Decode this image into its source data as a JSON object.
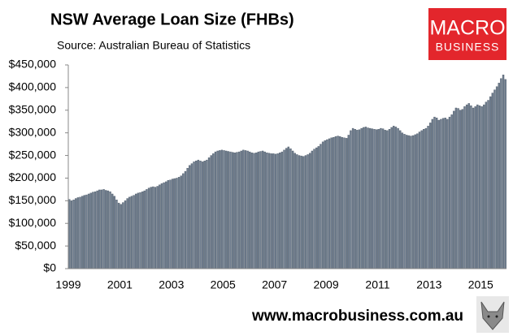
{
  "chart_data": {
    "type": "bar",
    "title": "NSW Average Loan Size (FHBs)",
    "subtitle": "Source: Australian Bureau of Statistics",
    "color": "#6f7d8e",
    "categories": [
      "1999",
      null,
      null,
      null,
      null,
      null,
      null,
      null,
      null,
      null,
      null,
      null,
      null,
      null,
      null,
      null,
      null,
      null,
      null,
      null,
      null,
      null,
      null,
      null,
      "2001",
      null,
      null,
      null,
      null,
      null,
      null,
      null,
      null,
      null,
      null,
      null,
      null,
      null,
      null,
      null,
      null,
      null,
      null,
      null,
      null,
      null,
      null,
      null,
      "2003",
      null,
      null,
      null,
      null,
      null,
      null,
      null,
      null,
      null,
      null,
      null,
      null,
      null,
      null,
      null,
      null,
      null,
      null,
      null,
      null,
      null,
      null,
      null,
      "2005",
      null,
      null,
      null,
      null,
      null,
      null,
      null,
      null,
      null,
      null,
      null,
      null,
      null,
      null,
      null,
      null,
      null,
      null,
      null,
      null,
      null,
      null,
      null,
      "2007",
      null,
      null,
      null,
      null,
      null,
      null,
      null,
      null,
      null,
      null,
      null,
      null,
      null,
      null,
      null,
      null,
      null,
      null,
      null,
      null,
      null,
      null,
      null,
      "2009",
      null,
      null,
      null,
      null,
      null,
      null,
      null,
      null,
      null,
      null,
      null,
      null,
      null,
      null,
      null,
      null,
      null,
      null,
      null,
      null,
      null,
      null,
      null,
      "2011",
      null,
      null,
      null,
      null,
      null,
      null,
      null,
      null,
      null,
      null,
      null,
      null,
      null,
      null,
      null,
      null,
      null,
      null,
      null,
      null,
      null,
      null,
      null,
      "2013",
      null,
      null,
      null,
      null,
      null,
      null,
      null,
      null,
      null,
      null,
      null,
      null,
      null,
      null,
      null,
      null,
      null,
      null,
      null,
      null,
      null,
      null,
      null,
      "2015",
      null,
      null,
      null,
      null,
      null,
      null,
      null,
      null,
      null,
      null,
      null
    ],
    "values": [
      153000,
      150000,
      152000,
      155000,
      157000,
      158000,
      160000,
      162000,
      163000,
      165000,
      167000,
      169000,
      170000,
      172000,
      174000,
      174000,
      175000,
      173000,
      172000,
      170000,
      165000,
      160000,
      152000,
      145000,
      142000,
      146000,
      150000,
      155000,
      158000,
      160000,
      162000,
      165000,
      167000,
      168000,
      170000,
      172000,
      175000,
      178000,
      180000,
      181000,
      180000,
      182000,
      185000,
      188000,
      190000,
      192000,
      195000,
      196000,
      198000,
      199000,
      200000,
      202000,
      205000,
      210000,
      215000,
      222000,
      228000,
      232000,
      236000,
      238000,
      240000,
      238000,
      236000,
      238000,
      240000,
      245000,
      250000,
      254000,
      258000,
      260000,
      261000,
      262000,
      261000,
      260000,
      259000,
      258000,
      257000,
      256000,
      257000,
      258000,
      260000,
      262000,
      261000,
      260000,
      258000,
      256000,
      255000,
      256000,
      258000,
      259000,
      260000,
      258000,
      256000,
      255000,
      254000,
      254000,
      253000,
      254000,
      256000,
      258000,
      262000,
      266000,
      269000,
      265000,
      260000,
      255000,
      252000,
      250000,
      249000,
      248000,
      250000,
      252000,
      255000,
      260000,
      264000,
      267000,
      270000,
      275000,
      280000,
      283000,
      285000,
      287000,
      289000,
      290000,
      292000,
      293000,
      292000,
      290000,
      289000,
      288000,
      295000,
      305000,
      310000,
      308000,
      306000,
      307000,
      310000,
      312000,
      313000,
      311000,
      310000,
      309000,
      308000,
      307000,
      308000,
      310000,
      309000,
      306000,
      305000,
      308000,
      312000,
      315000,
      313000,
      310000,
      305000,
      300000,
      297000,
      295000,
      294000,
      293000,
      294000,
      296000,
      298000,
      302000,
      305000,
      308000,
      310000,
      315000,
      322000,
      330000,
      335000,
      333000,
      328000,
      330000,
      332000,
      333000,
      330000,
      335000,
      340000,
      348000,
      355000,
      354000,
      350000,
      352000,
      358000,
      362000,
      365000,
      360000,
      355000,
      358000,
      362000,
      360000,
      358000,
      362000,
      368000,
      372000,
      380000,
      388000,
      395000,
      402000,
      410000,
      420000,
      428000,
      418000
    ],
    "ylim": [
      0,
      450000
    ],
    "yticks": [
      {
        "value": 0,
        "label": "$0"
      },
      {
        "value": 50000,
        "label": "$50,000"
      },
      {
        "value": 100000,
        "label": "$100,000"
      },
      {
        "value": 150000,
        "label": "$150,000"
      },
      {
        "value": 200000,
        "label": "$200,000"
      },
      {
        "value": 250000,
        "label": "$250,000"
      },
      {
        "value": 300000,
        "label": "$300,000"
      },
      {
        "value": 350000,
        "label": "$350,000"
      },
      {
        "value": 400000,
        "label": "$400,000"
      },
      {
        "value": 450000,
        "label": "$450,000"
      }
    ],
    "grid": false
  },
  "branding": {
    "logo_lines": [
      "MACRO",
      "BUSINESS"
    ],
    "website": "www.macrobusiness.com.au"
  }
}
